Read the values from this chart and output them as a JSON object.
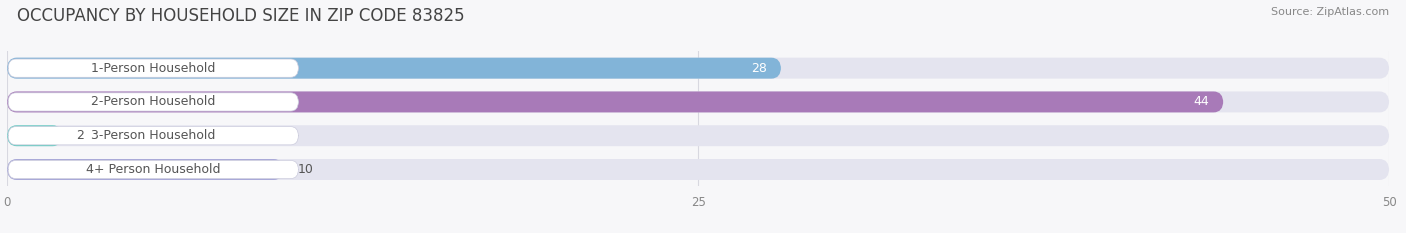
{
  "title": "OCCUPANCY BY HOUSEHOLD SIZE IN ZIP CODE 83825",
  "source": "Source: ZipAtlas.com",
  "categories": [
    "1-Person Household",
    "2-Person Household",
    "3-Person Household",
    "4+ Person Household"
  ],
  "values": [
    28,
    44,
    2,
    10
  ],
  "bar_colors": [
    "#82b4d8",
    "#a87ab8",
    "#6dcdc4",
    "#a8a8d8"
  ],
  "bar_bg_color": "#e4e4ef",
  "label_bg_color": "#ffffff",
  "xlim": [
    0,
    50
  ],
  "xticks": [
    0,
    25,
    50
  ],
  "title_fontsize": 12,
  "source_fontsize": 8,
  "label_fontsize": 9,
  "value_fontsize": 9,
  "bar_height": 0.62,
  "background_color": "#f7f7f9",
  "text_color": "#555555",
  "value_color_dark": "#ffffff",
  "grid_color": "#d8d8e0"
}
